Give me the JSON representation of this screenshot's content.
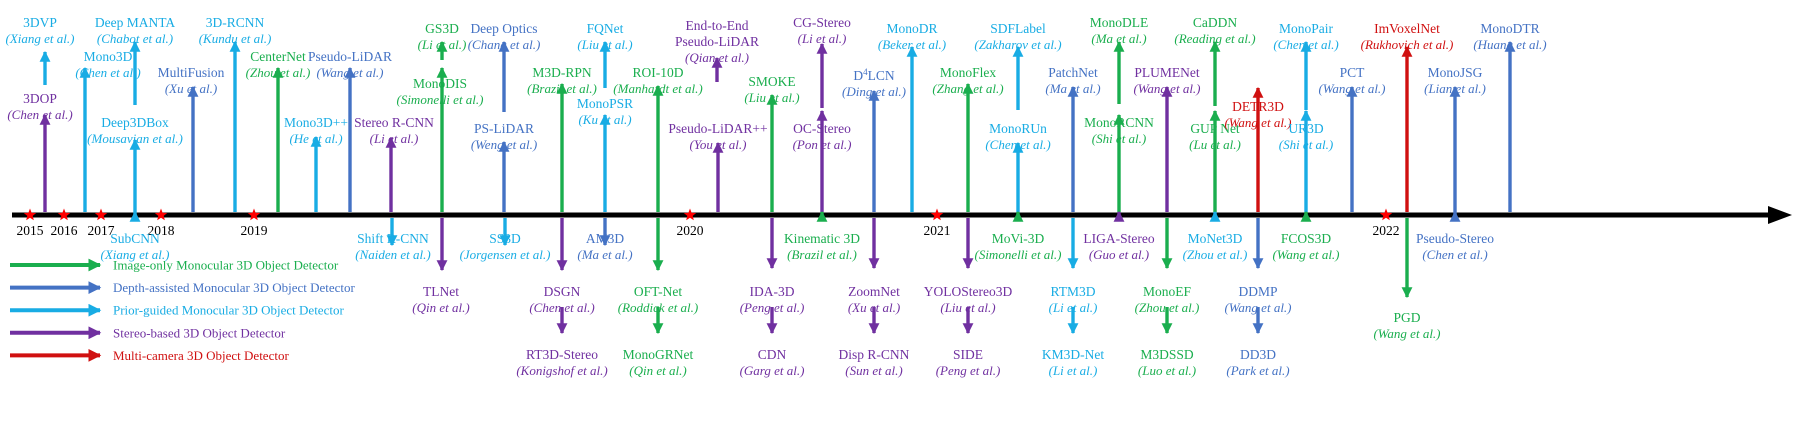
{
  "colors": {
    "image_only": "#1aae4e",
    "depth": "#4472c4",
    "prior": "#18ace4",
    "stereo": "#7030a0",
    "multi": "#d01010",
    "axis": "#000000",
    "star": "#ff0000"
  },
  "years": [
    "2015",
    "2016",
    "2017",
    "2018",
    "2019",
    "2020",
    "2021",
    "2022"
  ],
  "legend": [
    {
      "category": "image_only",
      "label": "Image-only Monocular 3D Object Detector"
    },
    {
      "category": "depth",
      "label": "Depth-assisted Monocular 3D Object Detector"
    },
    {
      "category": "prior",
      "label": "Prior-guided Monocular 3D Object Detector"
    },
    {
      "category": "stereo",
      "label": "Stereo-based 3D Object Detector"
    },
    {
      "category": "multi",
      "label": "Multi-camera 3D Object Detector"
    }
  ],
  "methods": [
    {
      "name": "3DOP",
      "authors": "Chen et al.",
      "category": "stereo"
    },
    {
      "name": "3DVP",
      "authors": "Xiang et al.",
      "category": "prior"
    },
    {
      "name": "Mono3D",
      "authors": "Chen et al.",
      "category": "prior"
    },
    {
      "name": "Deep MANTA",
      "authors": "Chabot et al.",
      "category": "prior"
    },
    {
      "name": "Deep3DBox",
      "authors": "Mousavian et al.",
      "category": "prior"
    },
    {
      "name": "SubCNN",
      "authors": "Xiang et al.",
      "category": "prior"
    },
    {
      "name": "MultiFusion",
      "authors": "Xu et al.",
      "category": "depth"
    },
    {
      "name": "3D-RCNN",
      "authors": "Kundu et al.",
      "category": "prior"
    },
    {
      "name": "CenterNet",
      "authors": "Zhou et al.",
      "category": "image_only"
    },
    {
      "name": "Mono3D++",
      "authors": "He et al.",
      "category": "prior"
    },
    {
      "name": "Pseudo-LiDAR",
      "authors": "Wang et al.",
      "category": "depth"
    },
    {
      "name": "Stereo R-CNN",
      "authors": "Li et al.",
      "category": "stereo"
    },
    {
      "name": "Shift R-CNN",
      "authors": "Naiden et al.",
      "category": "prior"
    },
    {
      "name": "GS3D",
      "authors": "Li et al.",
      "category": "image_only"
    },
    {
      "name": "MonoDIS",
      "authors": "Simonelli et al.",
      "category": "image_only"
    },
    {
      "name": "TLNet",
      "authors": "Qin et al.",
      "category": "stereo"
    },
    {
      "name": "Deep Optics",
      "authors": "Chang et al.",
      "category": "depth"
    },
    {
      "name": "PS-LiDAR",
      "authors": "Weng et al.",
      "category": "depth"
    },
    {
      "name": "SS3D",
      "authors": "Jorgensen et al.",
      "category": "prior"
    },
    {
      "name": "M3D-RPN",
      "authors": "Brazil et al.",
      "category": "image_only"
    },
    {
      "name": "DSGN",
      "authors": "Chen et al.",
      "category": "stereo"
    },
    {
      "name": "RT3D-Stereo",
      "authors": "Konigshof et al.",
      "category": "stereo"
    },
    {
      "name": "FQNet",
      "authors": "Liu et al.",
      "category": "prior"
    },
    {
      "name": "MonoPSR",
      "authors": "Ku et al.",
      "category": "prior"
    },
    {
      "name": "AM3D",
      "authors": "Ma et al.",
      "category": "depth"
    },
    {
      "name": "ROI-10D",
      "authors": "Manhardt et al.",
      "category": "image_only"
    },
    {
      "name": "OFT-Net",
      "authors": "Roddick et al.",
      "category": "image_only"
    },
    {
      "name": "MonoGRNet",
      "authors": "Qin et al.",
      "category": "image_only"
    },
    {
      "name": "End-to-End Pseudo-LiDAR",
      "authors": "Qian et al.",
      "category": "stereo"
    },
    {
      "name": "Pseudo-LiDAR++",
      "authors": "You et al.",
      "category": "stereo"
    },
    {
      "name": "SMOKE",
      "authors": "Liu et al.",
      "category": "image_only"
    },
    {
      "name": "IDA-3D",
      "authors": "Peng et al.",
      "category": "stereo"
    },
    {
      "name": "CDN",
      "authors": "Garg et al.",
      "category": "stereo"
    },
    {
      "name": "CG-Stereo",
      "authors": "Li et al.",
      "category": "stereo"
    },
    {
      "name": "OC-Stereo",
      "authors": "Pon et al.",
      "category": "stereo"
    },
    {
      "name": "Kinematic 3D",
      "authors": "Brazil et al.",
      "category": "image_only"
    },
    {
      "name": "D4LCN",
      "authors": "Ding et al.",
      "category": "depth"
    },
    {
      "name": "ZoomNet",
      "authors": "Xu et al.",
      "category": "stereo"
    },
    {
      "name": "Disp R-CNN",
      "authors": "Sun et al.",
      "category": "stereo"
    },
    {
      "name": "MonoDR",
      "authors": "Beker et al.",
      "category": "prior"
    },
    {
      "name": "MonoFlex",
      "authors": "Zhang et al.",
      "category": "image_only"
    },
    {
      "name": "YOLOStereo3D",
      "authors": "Liu et al.",
      "category": "stereo"
    },
    {
      "name": "SIDE",
      "authors": "Peng et al.",
      "category": "stereo"
    },
    {
      "name": "SDFLabel",
      "authors": "Zakharov et al.",
      "category": "prior"
    },
    {
      "name": "MonoRUn",
      "authors": "Chen et al.",
      "category": "prior"
    },
    {
      "name": "MoVi-3D",
      "authors": "Simonelli et al.",
      "category": "image_only"
    },
    {
      "name": "PatchNet",
      "authors": "Ma et al.",
      "category": "depth"
    },
    {
      "name": "RTM3D",
      "authors": "Li et al.",
      "category": "prior"
    },
    {
      "name": "KM3D-Net",
      "authors": "Li et al.",
      "category": "prior"
    },
    {
      "name": "MonoDLE",
      "authors": "Ma et al.",
      "category": "image_only"
    },
    {
      "name": "MonoRCNN",
      "authors": "Shi et al.",
      "category": "image_only"
    },
    {
      "name": "LIGA-Stereo",
      "authors": "Guo et al.",
      "category": "stereo"
    },
    {
      "name": "PLUMENet",
      "authors": "Wang et al.",
      "category": "stereo"
    },
    {
      "name": "MonoEF",
      "authors": "Zhou et al.",
      "category": "image_only"
    },
    {
      "name": "M3DSSD",
      "authors": "Luo et al.",
      "category": "image_only"
    },
    {
      "name": "CaDDN",
      "authors": "Reading et al.",
      "category": "image_only"
    },
    {
      "name": "GUP Net",
      "authors": "Lu et al.",
      "category": "image_only"
    },
    {
      "name": "MoNet3D",
      "authors": "Zhou et al.",
      "category": "prior"
    },
    {
      "name": "DETR3D",
      "authors": "Wang et al.",
      "category": "multi"
    },
    {
      "name": "DDMP",
      "authors": "Wang et al.",
      "category": "depth"
    },
    {
      "name": "DD3D",
      "authors": "Park et al.",
      "category": "depth"
    },
    {
      "name": "MonoPair",
      "authors": "Chen et al.",
      "category": "prior"
    },
    {
      "name": "UR3D",
      "authors": "Shi et al.",
      "category": "prior"
    },
    {
      "name": "FCOS3D",
      "authors": "Wang et al.",
      "category": "image_only"
    },
    {
      "name": "PCT",
      "authors": "Wang et al.",
      "category": "depth"
    },
    {
      "name": "ImVoxelNet",
      "authors": "Rukhovich et al.",
      "category": "multi"
    },
    {
      "name": "PGD",
      "authors": "Wang et al.",
      "category": "image_only"
    },
    {
      "name": "MonoJSG",
      "authors": "Lian et al.",
      "category": "depth"
    },
    {
      "name": "Pseudo-Stereo",
      "authors": "Chen et al.",
      "category": "depth"
    },
    {
      "name": "MonoDTR",
      "authors": "Huang et al.",
      "category": "depth"
    }
  ]
}
